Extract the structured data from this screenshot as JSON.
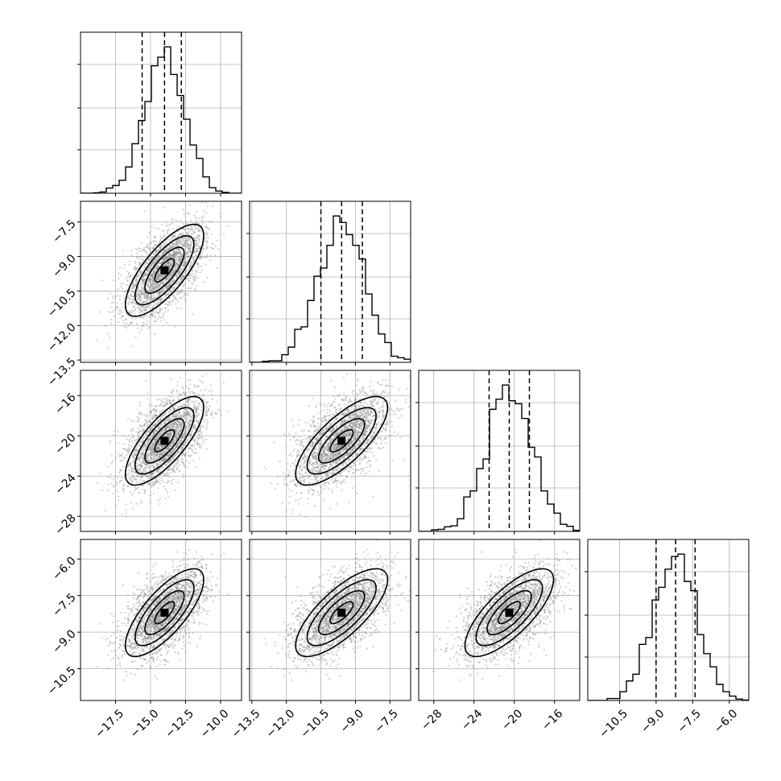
{
  "chart_data": {
    "type": "corner",
    "title": "",
    "n_params": 4,
    "grid": true,
    "colors": {
      "points": "#8a8a8a",
      "lines": "#000000",
      "grid": "#b0b0b0"
    },
    "parameters": [
      {
        "label": "",
        "mean": -14.0,
        "sd": 1.4,
        "range": [
          -20.0,
          -8.5
        ],
        "quantiles": [
          -15.6,
          -14.0,
          -12.8
        ],
        "ticks": [
          -17.5,
          -15.0,
          -12.5,
          -10.0
        ],
        "tick_labels": [
          "−17.5",
          "−15.0",
          "−12.5",
          "−10.0"
        ]
      },
      {
        "label": "",
        "mean": -9.6,
        "sd": 1.0,
        "range": [
          -13.6,
          -6.6
        ],
        "quantiles": [
          -10.5,
          -9.6,
          -8.7
        ],
        "ticks": [
          -13.5,
          -12.0,
          -10.5,
          -9.0,
          -7.5
        ],
        "tick_labels": [
          "−13.5",
          "−12.0",
          "−10.5",
          "−9.0",
          "−7.5"
        ]
      },
      {
        "label": "",
        "mean": -20.5,
        "sd": 2.2,
        "range": [
          -29.5,
          -13.5
        ],
        "quantiles": [
          -22.5,
          -20.5,
          -18.5
        ],
        "ticks": [
          -28,
          -24,
          -20,
          -16
        ],
        "tick_labels": [
          "−28",
          "−24",
          "−20",
          "−16"
        ]
      },
      {
        "label": "",
        "mean": -8.2,
        "sd": 0.9,
        "range": [
          -11.8,
          -5.2
        ],
        "quantiles": [
          -9.0,
          -8.2,
          -7.4
        ],
        "ticks": [
          -10.5,
          -9.0,
          -7.5,
          -6.0
        ],
        "tick_labels": [
          "−10.5",
          "−9.0",
          "−7.5",
          "−6.0"
        ]
      }
    ],
    "correlation": 0.75,
    "n_samples": 2500,
    "contour_levels_sigma": [
      0.5,
      1.0,
      1.5,
      2.0
    ],
    "histogram_bins": 25
  }
}
